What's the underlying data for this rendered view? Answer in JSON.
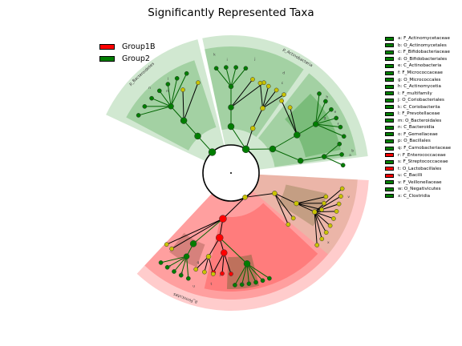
{
  "title": "Significantly Represented Taxa",
  "colors": {
    "group1b": "#ff0000",
    "group2": "#007d00",
    "nonsig": "#c9c300"
  },
  "group_legend": [
    {
      "label": "Group1B",
      "color": "#ff0000"
    },
    {
      "label": "Group2",
      "color": "#007d00"
    }
  ],
  "clade_legend": [
    {
      "label": "a: F_Actinomycetaceae",
      "group": "group2"
    },
    {
      "label": "b: O_Actinomycetales",
      "group": "group2"
    },
    {
      "label": "c: F_Bifidobacteriaceae",
      "group": "group2"
    },
    {
      "label": "d: O_Bifidobacteriales",
      "group": "group2"
    },
    {
      "label": "e: C_Actinobacteria",
      "group": "group2"
    },
    {
      "label": "f: F_Micrococcaceae",
      "group": "group2"
    },
    {
      "label": "g: O_Micrococcales",
      "group": "group2"
    },
    {
      "label": "h: C_Actinomycetia",
      "group": "group2"
    },
    {
      "label": "i: F_multifamily",
      "group": "group2"
    },
    {
      "label": "j: O_Coriobacteriales",
      "group": "group2"
    },
    {
      "label": "k: C_Coriobacteriia",
      "group": "group2"
    },
    {
      "label": "l: F_Prevotellaceae",
      "group": "group2"
    },
    {
      "label": "m: O_Bacteroidales",
      "group": "group2"
    },
    {
      "label": "n: C_Bacteroidia",
      "group": "group2"
    },
    {
      "label": "o: F_Gemellaceae",
      "group": "group2"
    },
    {
      "label": "p: O_Bacillales",
      "group": "group2"
    },
    {
      "label": "q: F_Carnobacteriaceae",
      "group": "group2"
    },
    {
      "label": "r: F_Enterococcaceae",
      "group": "group1b"
    },
    {
      "label": "s: F_Streptococcaceae",
      "group": "group2"
    },
    {
      "label": "t: O_Lactobacillales",
      "group": "group1b"
    },
    {
      "label": "u: C_Bacilli",
      "group": "group1b"
    },
    {
      "label": "v: F_Veillonellaceae",
      "group": "group2"
    },
    {
      "label": "w: O_Negativicutes",
      "group": "group2"
    },
    {
      "label": "x: C_Clostridia",
      "group": "group2"
    }
  ],
  "phylum_labels": [
    {
      "text": "p_Bacteroidetes"
    },
    {
      "text": "p_Actinobacteria"
    },
    {
      "text": "p_Firmicutes"
    }
  ],
  "clade_letters": [
    "a",
    "b",
    "c",
    "d",
    "e",
    "f",
    "g",
    "h",
    "i",
    "j",
    "k",
    "l",
    "m",
    "n",
    "o",
    "p",
    "q",
    "r",
    "s",
    "t",
    "u",
    "v",
    "w",
    "x"
  ]
}
